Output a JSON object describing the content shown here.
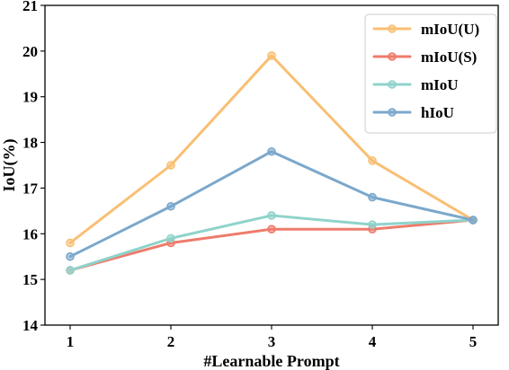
{
  "chart_data": {
    "type": "line",
    "title": "",
    "xlabel": "#Learnable Prompt",
    "ylabel": "IoU(%)",
    "x": [
      1,
      2,
      3,
      4,
      5
    ],
    "x_ticks": [
      "1",
      "2",
      "3",
      "4",
      "5"
    ],
    "xlim": [
      0.75,
      5.25
    ],
    "ylim": [
      14,
      21
    ],
    "y_ticks": [
      "14",
      "15",
      "16",
      "17",
      "18",
      "19",
      "20",
      "21"
    ],
    "grid": false,
    "legend_position": "top-right",
    "series": [
      {
        "name": "mIoU(U)",
        "color": "#f9bf73",
        "values": [
          15.8,
          17.5,
          19.9,
          17.6,
          16.3
        ]
      },
      {
        "name": "mIoU(S)",
        "color": "#ee7b6b",
        "values": [
          15.2,
          15.8,
          16.1,
          16.1,
          16.3
        ]
      },
      {
        "name": "mIoU",
        "color": "#8fd3cb",
        "values": [
          15.2,
          15.9,
          16.4,
          16.2,
          16.3
        ]
      },
      {
        "name": "hIoU",
        "color": "#7ba8cc",
        "values": [
          15.5,
          16.6,
          17.8,
          16.8,
          16.3
        ]
      }
    ]
  }
}
